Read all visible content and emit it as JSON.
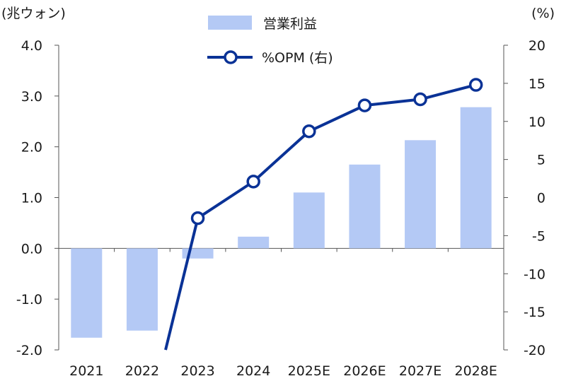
{
  "chart_data": {
    "type": "bar+line",
    "categories": [
      "2021",
      "2022",
      "2023",
      "2024",
      "2025E",
      "2026E",
      "2027E",
      "2028E"
    ],
    "series": [
      {
        "name": "営業利益",
        "type": "bar",
        "axis": "left",
        "color": "#b4c9f5",
        "values": [
          -1.76,
          -1.62,
          -0.2,
          0.23,
          1.1,
          1.65,
          2.13,
          2.78
        ]
      },
      {
        "name": "%OPM (右)",
        "type": "line",
        "axis": "right",
        "color": "#0a3296",
        "values": [
          null,
          null,
          -2.7,
          2.1,
          8.7,
          12.1,
          12.9,
          14.8
        ]
      }
    ],
    "left_axis": {
      "unit_label": "(兆ウォン)",
      "min": -2.0,
      "max": 4.0,
      "ticks": [
        "4.0",
        "3.0",
        "2.0",
        "1.0",
        "0.0",
        "-1.0",
        "-2.0"
      ]
    },
    "right_axis": {
      "unit_label": "(%)",
      "min": -20,
      "max": 20,
      "ticks": [
        "20",
        "15",
        "10",
        "5",
        "0",
        "-5",
        "-10",
        "-15",
        "-20"
      ]
    },
    "legend": [
      "営業利益",
      "%OPM (右)"
    ],
    "legend_position": "top-center",
    "line_extends_below_axis_from": "2023",
    "grid": false
  }
}
